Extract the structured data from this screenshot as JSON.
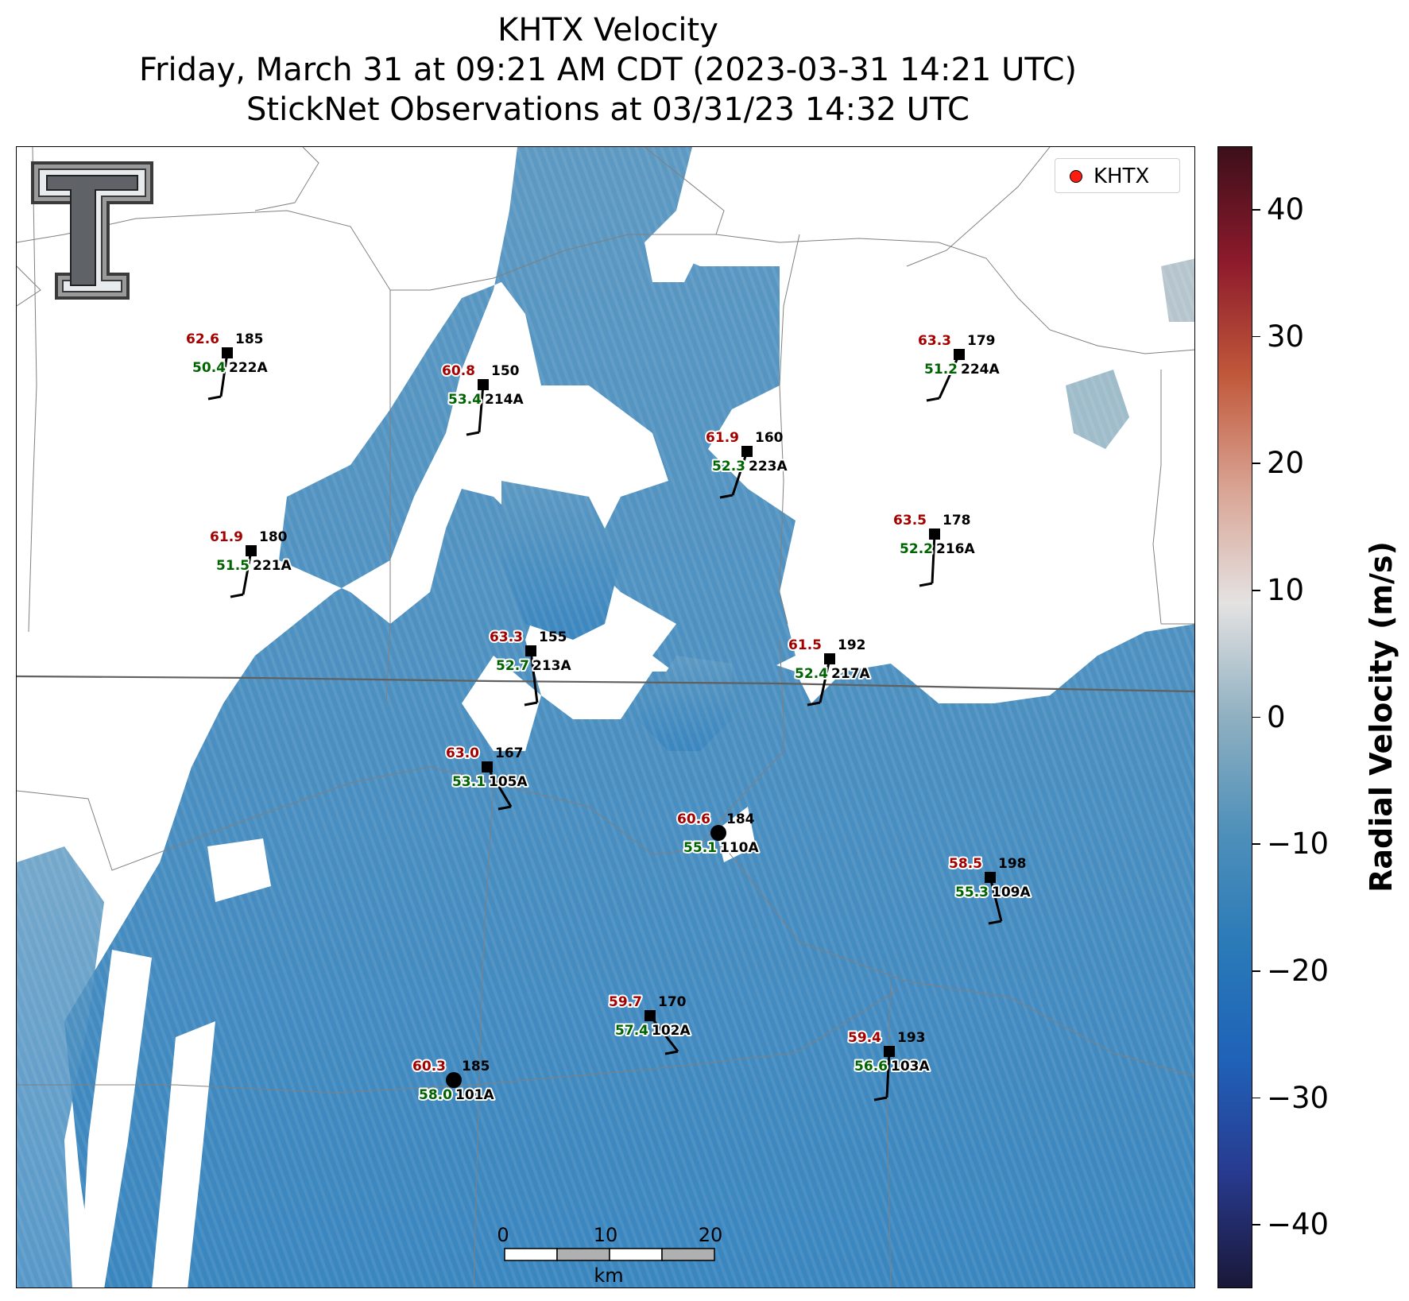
{
  "title": {
    "line1": "KHTX Velocity",
    "line2": "Friday, March 31 at 09:21 AM CDT (2023-03-31 14:21 UTC)",
    "line3": "StickNet Observations at 03/31/23 14:32 UTC"
  },
  "legend": {
    "label": "KHTX",
    "marker_color": "#ff1b0f"
  },
  "colorbar": {
    "label": "Radial Velocity (m/s)",
    "ticks": [
      "40",
      "30",
      "20",
      "10",
      "0",
      "−10",
      "−20",
      "−30",
      "−40"
    ],
    "range": [
      -45,
      45
    ],
    "colors": [
      "#1a1838",
      "#283a8f",
      "#1f62b8",
      "#2a7ab8",
      "#4f90ba",
      "#8fb0c1",
      "#e4e2e2",
      "#d9a494",
      "#c0583a",
      "#8c1a2c",
      "#3c0f1a"
    ]
  },
  "scale_bar": {
    "ticks": [
      "0",
      "10",
      "20"
    ],
    "unit": "km"
  },
  "stations": [
    {
      "id": "222A",
      "red": "62.6",
      "green": "50.4",
      "dir": "185"
    },
    {
      "id": "214A",
      "red": "60.8",
      "green": "53.4",
      "dir": "150"
    },
    {
      "id": "224A",
      "red": "63.3",
      "green": "51.2",
      "dir": "179"
    },
    {
      "id": "223A",
      "red": "61.9",
      "green": "52.3",
      "dir": "160"
    },
    {
      "id": "221A",
      "red": "61.9",
      "green": "51.5",
      "dir": "180"
    },
    {
      "id": "216A",
      "red": "63.5",
      "green": "52.2",
      "dir": "178"
    },
    {
      "id": "213A",
      "red": "63.3",
      "green": "52.7",
      "dir": "155"
    },
    {
      "id": "217A",
      "red": "61.5",
      "green": "52.4",
      "dir": "192"
    },
    {
      "id": "105A",
      "red": "63.0",
      "green": "53.1",
      "dir": "167"
    },
    {
      "id": "110A",
      "red": "60.6",
      "green": "55.1",
      "dir": "184"
    },
    {
      "id": "109A",
      "red": "58.5",
      "green": "55.3",
      "dir": "198"
    },
    {
      "id": "102A",
      "red": "59.7",
      "green": "57.4",
      "dir": "170"
    },
    {
      "id": "103A",
      "red": "59.4",
      "green": "56.6",
      "dir": "193"
    },
    {
      "id": "101A",
      "red": "60.3",
      "green": "58.0",
      "dir": "185"
    }
  ],
  "colors": {
    "station_red": "#a30000",
    "station_green": "#006400",
    "radar_blue": "#4a8fbd"
  }
}
